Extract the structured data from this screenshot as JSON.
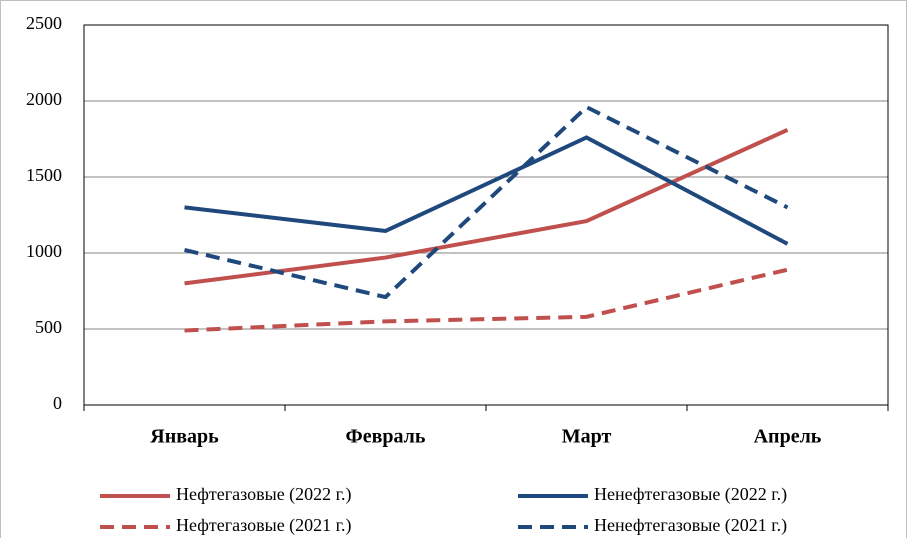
{
  "chart_data": {
    "type": "line",
    "categories": [
      "Январь",
      "Февраль",
      "Март",
      "Апрель"
    ],
    "series": [
      {
        "name": "Нефтегазовые (2022 г.)",
        "color": "#c0504d",
        "dash": false,
        "values": [
          800,
          970,
          1210,
          1810
        ]
      },
      {
        "name": "Ненефтегазовые (2022 г.)",
        "color": "#1f497d",
        "dash": false,
        "values": [
          1300,
          1145,
          1760,
          1060
        ]
      },
      {
        "name": "Нефтегазовые (2021 г.)",
        "color": "#c0504d",
        "dash": true,
        "values": [
          490,
          550,
          580,
          890
        ]
      },
      {
        "name": "Ненефтегазовые (2021 г.)",
        "color": "#1f497d",
        "dash": true,
        "values": [
          1020,
          710,
          1960,
          1300
        ]
      }
    ],
    "ylim": [
      0,
      2500
    ],
    "yticks": [
      0,
      500,
      1000,
      1500,
      2000,
      2500
    ],
    "grid": true
  }
}
